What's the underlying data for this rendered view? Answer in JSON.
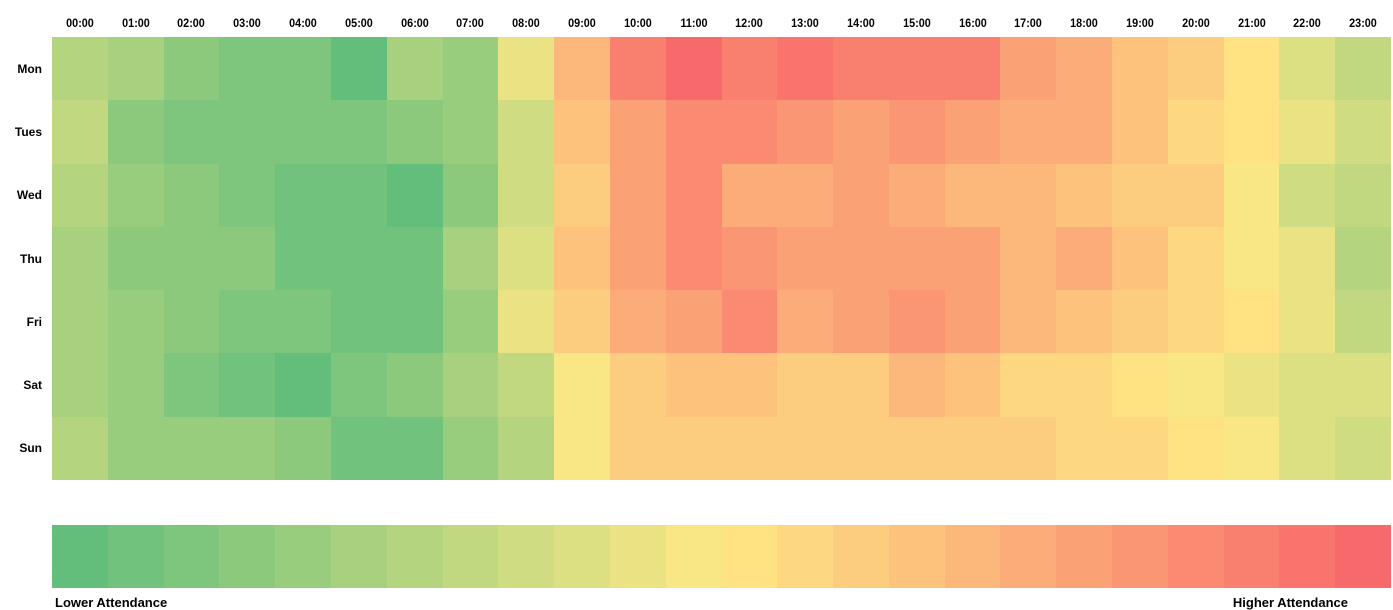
{
  "chart_data": {
    "type": "heatmap",
    "title": "",
    "x": [
      "00:00",
      "01:00",
      "02:00",
      "03:00",
      "04:00",
      "05:00",
      "06:00",
      "07:00",
      "08:00",
      "09:00",
      "10:00",
      "11:00",
      "12:00",
      "13:00",
      "14:00",
      "15:00",
      "16:00",
      "17:00",
      "18:00",
      "19:00",
      "20:00",
      "21:00",
      "22:00",
      "23:00"
    ],
    "y": [
      "Mon",
      "Tues",
      "Wed",
      "Thu",
      "Fri",
      "Sat",
      "Sun"
    ],
    "scale": {
      "min": 0,
      "max": 23,
      "low_color": "#63be7b",
      "mid_color": "#ffe984",
      "high_color": "#f8696b"
    },
    "values": [
      [
        6,
        5,
        3,
        2,
        2,
        0,
        5,
        4,
        10,
        16,
        21,
        23,
        21,
        22,
        21,
        21,
        21,
        18,
        17,
        15,
        14,
        12,
        9,
        7
      ],
      [
        7,
        3,
        2,
        2,
        2,
        2,
        3,
        4,
        8,
        15,
        18,
        20,
        20,
        19,
        18,
        19,
        18,
        17,
        17,
        15,
        13,
        12,
        10,
        8
      ],
      [
        6,
        4,
        3,
        2,
        1,
        1,
        0,
        3,
        8,
        14,
        18,
        20,
        17,
        17,
        18,
        17,
        16,
        16,
        15,
        14,
        14,
        11,
        8,
        7
      ],
      [
        5,
        3,
        3,
        3,
        1,
        1,
        1,
        5,
        9,
        15,
        18,
        20,
        19,
        18,
        18,
        18,
        18,
        16,
        17,
        15,
        13,
        11,
        10,
        6
      ],
      [
        5,
        4,
        3,
        2,
        2,
        1,
        1,
        4,
        10,
        14,
        17,
        18,
        20,
        17,
        18,
        19,
        18,
        16,
        15,
        14,
        13,
        12,
        10,
        7
      ],
      [
        5,
        4,
        2,
        1,
        0,
        2,
        3,
        5,
        7,
        11,
        14,
        15,
        15,
        14,
        14,
        16,
        15,
        13,
        13,
        12,
        11,
        10,
        9,
        9
      ],
      [
        6,
        4,
        4,
        4,
        3,
        1,
        1,
        4,
        6,
        11,
        14,
        14,
        14,
        14,
        14,
        14,
        14,
        14,
        13,
        13,
        12,
        11,
        9,
        8
      ]
    ],
    "legend": {
      "steps": 24,
      "low_label": "Lower Attendance",
      "high_label": "Higher Attendance"
    }
  }
}
